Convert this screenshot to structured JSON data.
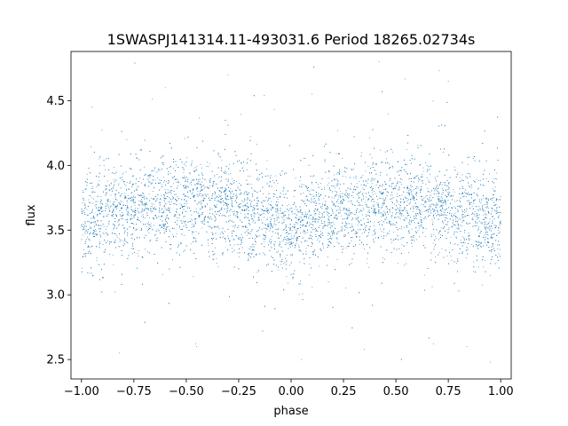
{
  "chart_data": {
    "type": "scatter",
    "title": "1SWASPJ141314.11-493031.6 Period 18265.02734s",
    "xlabel": "phase",
    "ylabel": "flux",
    "xlim": [
      -1.05,
      1.05
    ],
    "ylim": [
      2.35,
      4.88
    ],
    "xticks": [
      -1.0,
      -0.75,
      -0.5,
      -0.25,
      0.0,
      0.25,
      0.5,
      0.75,
      1.0
    ],
    "xtick_labels": [
      "−1.00",
      "−0.75",
      "−0.50",
      "−0.25",
      "0.00",
      "0.25",
      "0.50",
      "0.75",
      "1.00"
    ],
    "yticks": [
      2.5,
      3.0,
      3.5,
      4.0,
      4.5
    ],
    "ytick_labels": [
      "2.5",
      "3.0",
      "3.5",
      "4.0",
      "4.5"
    ],
    "grid": false,
    "marker_color": "#1f77b4",
    "phase_flux_profile": {
      "phase": [
        -1.0,
        -0.75,
        -0.5,
        -0.25,
        0.0,
        0.25,
        0.5,
        0.75,
        1.0
      ],
      "median_flux": [
        3.53,
        3.68,
        3.72,
        3.65,
        3.52,
        3.65,
        3.72,
        3.66,
        3.53
      ],
      "typical_scatter": 0.18,
      "outlier_range": [
        2.45,
        4.82
      ]
    },
    "series": [
      {
        "points": [
          [
            -0.98,
            3.55
          ],
          [
            -0.92,
            3.62
          ],
          [
            -0.85,
            3.66
          ],
          [
            -0.78,
            3.69
          ],
          [
            -0.71,
            3.71
          ],
          [
            -0.64,
            3.73
          ],
          [
            -0.57,
            3.72
          ],
          [
            -0.5,
            3.72
          ],
          [
            -0.43,
            3.7
          ],
          [
            -0.36,
            3.68
          ],
          [
            -0.29,
            3.66
          ],
          [
            -0.22,
            3.62
          ],
          [
            -0.15,
            3.58
          ],
          [
            -0.08,
            3.54
          ],
          [
            -0.01,
            3.52
          ],
          [
            0.06,
            3.54
          ],
          [
            0.13,
            3.58
          ],
          [
            0.2,
            3.63
          ],
          [
            0.27,
            3.66
          ],
          [
            0.34,
            3.69
          ],
          [
            0.41,
            3.71
          ],
          [
            0.48,
            3.72
          ],
          [
            0.55,
            3.72
          ],
          [
            0.62,
            3.7
          ],
          [
            0.69,
            3.68
          ],
          [
            0.76,
            3.65
          ],
          [
            0.83,
            3.61
          ],
          [
            0.9,
            3.57
          ],
          [
            0.97,
            3.54
          ],
          [
            -0.95,
            4.45
          ],
          [
            -0.6,
            4.6
          ],
          [
            -0.3,
            4.7
          ],
          [
            0.1,
            4.55
          ],
          [
            0.42,
            4.8
          ],
          [
            0.75,
            4.65
          ],
          [
            -0.82,
            2.55
          ],
          [
            -0.45,
            2.6
          ],
          [
            0.05,
            2.5
          ],
          [
            0.35,
            2.58
          ],
          [
            0.68,
            2.62
          ],
          [
            0.95,
            2.48
          ]
        ]
      }
    ]
  }
}
